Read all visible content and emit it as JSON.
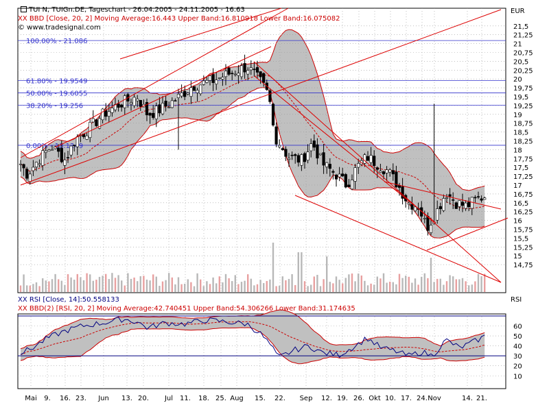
{
  "main_legend": {
    "title": "TUI N, TUIGn.DE, Tageschart - 26.04.2005 - 24.11.2005 - 16.63",
    "bbd": "BBD [Close, 20, 2] Moving Average:16.443 Upper Band:16.810918 Lower Band:16.075082",
    "source": "© www.tradesignal.com"
  },
  "rsi_legend": {
    "rsi": "RSI [Close, 14]:50.558133",
    "bbd": "BBD(2) [RSI, 20, 2] Moving Average:42.740451 Upper Band:54.306266 Lower Band:31.174635"
  },
  "colors": {
    "price": "#000000",
    "band_fill": "#c0c0c0",
    "band_line": "#cc0000",
    "fib": "#3333cc",
    "rsi": "#000080"
  },
  "chart_data": [
    {
      "type": "candlestick",
      "currency": "EUR",
      "ylim": [
        14.5,
        22.0
      ],
      "y_ticks": [
        "14,75",
        "15",
        "15,25",
        "15,5",
        "15,75",
        "16",
        "16,25",
        "16,5",
        "16,75",
        "17",
        "17,25",
        "17,5",
        "17,75",
        "18",
        "18,25",
        "18,5",
        "18,75",
        "19",
        "19,25",
        "19,5",
        "19,75",
        "20",
        "20,25",
        "20,5",
        "20,75",
        "21",
        "21,25",
        "21,5"
      ],
      "fib_levels": [
        {
          "label": "100.00% - 21.086",
          "value": 21.086
        },
        {
          "label": "61.80% - 19.9549",
          "value": 19.9549
        },
        {
          "label": "50.00% - 19.6055",
          "value": 19.6055
        },
        {
          "label": "38.20% - 19.256",
          "value": 19.256
        },
        {
          "label": "0.00% - 18.1249",
          "value": 18.1249
        }
      ],
      "last_close": 16.63,
      "moving_average": 16.443,
      "upper_band": 16.810918,
      "lower_band": 16.075082
    },
    {
      "type": "line",
      "name": "RSI",
      "ylim": [
        0,
        70
      ],
      "y_ticks": [
        "10",
        "20",
        "30",
        "40",
        "50",
        "60"
      ],
      "rsi_last": 50.558133,
      "moving_average": 42.740451,
      "upper_band": 54.306266,
      "lower_band": 31.174635
    }
  ],
  "x_axis_labels": [
    "Mai",
    "9.",
    "16.",
    "23.",
    "Jun",
    "13.",
    "20.",
    "Jul",
    "11.",
    "18.",
    "25.",
    "Aug",
    "15.",
    "22.",
    "Sep",
    "12.",
    "19.",
    "26.",
    "Okt",
    "10.",
    "17.",
    "24.",
    "Nov",
    "14.",
    "21."
  ]
}
